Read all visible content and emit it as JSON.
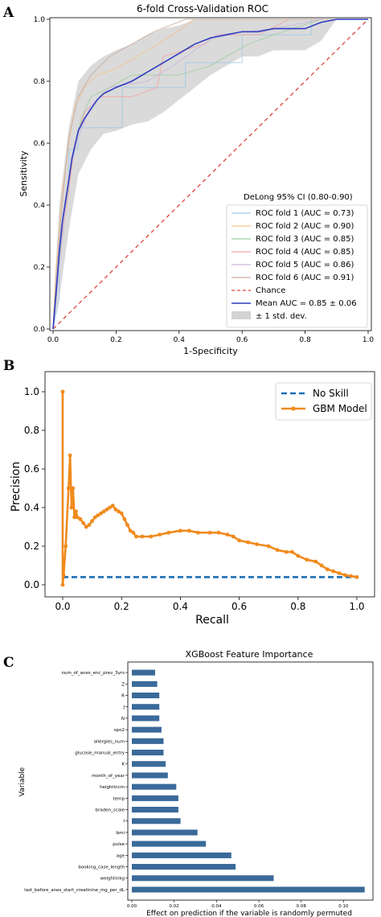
{
  "panel_letters": {
    "a": "A",
    "b": "B",
    "c": "C"
  },
  "chart_data": [
    {
      "type": "line",
      "title": "6-fold Cross-Validation ROC",
      "xlabel": "1-Specificity",
      "ylabel": "Sensitivity",
      "xlim": [
        0,
        1
      ],
      "ylim": [
        0,
        1
      ],
      "xticks": [
        "0.0",
        "0.2",
        "0.4",
        "0.6",
        "0.8",
        "1.0"
      ],
      "yticks": [
        "0.0",
        "0.2",
        "0.4",
        "0.6",
        "0.8",
        "1.0"
      ],
      "legend_title": "DeLong 95% CI  (0.80-0.90)",
      "legend_position": "lower-right",
      "series": [
        {
          "name": "ROC fold 1 (AUC = 0.73)",
          "color": "#9ecae9",
          "x": [
            0,
            0.02,
            0.02,
            0.05,
            0.05,
            0.08,
            0.08,
            0.22,
            0.22,
            0.42,
            0.42,
            0.6,
            0.6,
            0.82,
            0.82,
            1.0
          ],
          "y": [
            0,
            0.1,
            0.3,
            0.45,
            0.58,
            0.58,
            0.65,
            0.65,
            0.78,
            0.78,
            0.86,
            0.86,
            0.95,
            0.95,
            1.0,
            1.0
          ]
        },
        {
          "name": "ROC fold 2 (AUC = 0.90)",
          "color": "#f5c28a",
          "x": [
            0,
            0.01,
            0.03,
            0.05,
            0.07,
            0.1,
            0.14,
            0.2,
            0.3,
            0.38,
            0.45,
            0.55,
            0.75,
            1.0
          ],
          "y": [
            0,
            0.2,
            0.45,
            0.6,
            0.72,
            0.78,
            0.82,
            0.84,
            0.9,
            0.95,
            1.0,
            1.0,
            1.0,
            1.0
          ]
        },
        {
          "name": "ROC fold 3 (AUC = 0.85)",
          "color": "#9fcf9f",
          "x": [
            0,
            0.02,
            0.04,
            0.06,
            0.09,
            0.12,
            0.18,
            0.25,
            0.4,
            0.5,
            0.55,
            0.62,
            0.7,
            0.85,
            1.0
          ],
          "y": [
            0,
            0.22,
            0.4,
            0.55,
            0.68,
            0.75,
            0.78,
            0.82,
            0.82,
            0.85,
            0.88,
            0.92,
            0.95,
            1.0,
            1.0
          ]
        },
        {
          "name": "ROC fold 4 (AUC = 0.85)",
          "color": "#f2a3a3",
          "x": [
            0,
            0.02,
            0.05,
            0.07,
            0.1,
            0.15,
            0.25,
            0.33,
            0.35,
            0.48,
            0.52,
            0.65,
            0.75,
            1.0
          ],
          "y": [
            0,
            0.25,
            0.45,
            0.6,
            0.7,
            0.75,
            0.75,
            0.78,
            0.88,
            0.92,
            0.95,
            0.95,
            1.0,
            1.0
          ]
        },
        {
          "name": "ROC fold 5 (AUC = 0.86)",
          "color": "#cbb5dd",
          "x": [
            0,
            0.03,
            0.05,
            0.08,
            0.12,
            0.18,
            0.3,
            0.38,
            0.45,
            0.52,
            0.7,
            0.85,
            1.0
          ],
          "y": [
            0,
            0.3,
            0.5,
            0.62,
            0.72,
            0.78,
            0.8,
            0.85,
            0.9,
            0.95,
            0.97,
            1.0,
            1.0
          ]
        },
        {
          "name": "ROC fold 6 (AUC = 0.91)",
          "color": "#c9a99a",
          "x": [
            0,
            0.01,
            0.03,
            0.05,
            0.08,
            0.12,
            0.18,
            0.25,
            0.32,
            0.42,
            0.6,
            1.0
          ],
          "y": [
            0,
            0.18,
            0.42,
            0.62,
            0.75,
            0.82,
            0.88,
            0.92,
            0.96,
            1.0,
            1.0,
            1.0
          ]
        },
        {
          "name": "Chance",
          "color": "#e0443c",
          "style": "dashed",
          "x": [
            0,
            1
          ],
          "y": [
            0,
            1
          ]
        },
        {
          "name": "Mean AUC = 0.85 ± 0.06",
          "color": "#2f3bbf",
          "x": [
            0,
            0.01,
            0.02,
            0.03,
            0.05,
            0.06,
            0.08,
            0.1,
            0.12,
            0.14,
            0.16,
            0.18,
            0.2,
            0.25,
            0.3,
            0.35,
            0.4,
            0.45,
            0.5,
            0.55,
            0.6,
            0.65,
            0.7,
            0.75,
            0.8,
            0.85,
            0.9,
            0.95,
            1.0
          ],
          "y": [
            0,
            0.12,
            0.25,
            0.35,
            0.48,
            0.55,
            0.64,
            0.68,
            0.71,
            0.74,
            0.76,
            0.77,
            0.78,
            0.8,
            0.83,
            0.86,
            0.89,
            0.92,
            0.94,
            0.95,
            0.96,
            0.96,
            0.97,
            0.97,
            0.97,
            0.99,
            1.0,
            1.0,
            1.0
          ]
        }
      ],
      "band": {
        "name": "± 1 std. dev.",
        "color": "#d3d3d3",
        "x": [
          0,
          0.02,
          0.05,
          0.08,
          0.12,
          0.16,
          0.2,
          0.25,
          0.3,
          0.35,
          0.4,
          0.45,
          0.5,
          0.55,
          0.6,
          0.65,
          0.7,
          0.75,
          0.8,
          0.85,
          0.9,
          1.0
        ],
        "upper": [
          0.05,
          0.4,
          0.65,
          0.8,
          0.85,
          0.88,
          0.9,
          0.92,
          0.95,
          0.97,
          0.98,
          1.0,
          1.0,
          1.0,
          1.0,
          1.0,
          1.0,
          1.0,
          1.0,
          1.0,
          1.0,
          1.0
        ],
        "lower": [
          0,
          0.1,
          0.32,
          0.5,
          0.58,
          0.63,
          0.64,
          0.66,
          0.67,
          0.7,
          0.74,
          0.78,
          0.82,
          0.85,
          0.88,
          0.88,
          0.9,
          0.9,
          0.9,
          0.93,
          1.0,
          1.0
        ]
      }
    },
    {
      "type": "line",
      "title": "",
      "xlabel": "Recall",
      "ylabel": "Precision",
      "xlim": [
        0,
        1
      ],
      "ylim": [
        0,
        1
      ],
      "xticks": [
        "0.0",
        "0.2",
        "0.4",
        "0.6",
        "0.8",
        "1.0"
      ],
      "yticks": [
        "0.0",
        "0.2",
        "0.4",
        "0.6",
        "0.8",
        "1.0"
      ],
      "legend_position": "top-right",
      "series": [
        {
          "name": "No Skill",
          "color": "#1f6fb4",
          "style": "dashed",
          "x": [
            0,
            1
          ],
          "y": [
            0.04,
            0.04
          ]
        },
        {
          "name": "GBM Model",
          "color": "#f08a1c",
          "marker": "dot",
          "x": [
            0,
            0,
            0.003,
            0.01,
            0.02,
            0.025,
            0.03,
            0.035,
            0.04,
            0.045,
            0.05,
            0.06,
            0.07,
            0.08,
            0.09,
            0.1,
            0.11,
            0.12,
            0.13,
            0.14,
            0.15,
            0.16,
            0.17,
            0.18,
            0.19,
            0.2,
            0.21,
            0.22,
            0.23,
            0.24,
            0.25,
            0.27,
            0.3,
            0.33,
            0.36,
            0.4,
            0.43,
            0.46,
            0.5,
            0.53,
            0.56,
            0.58,
            0.6,
            0.63,
            0.66,
            0.7,
            0.73,
            0.76,
            0.78,
            0.8,
            0.83,
            0.86,
            0.88,
            0.9,
            0.92,
            0.94,
            0.96,
            0.98,
            1.0
          ],
          "y": [
            1.0,
            0,
            0.05,
            0.2,
            0.5,
            0.67,
            0.4,
            0.5,
            0.35,
            0.38,
            0.35,
            0.34,
            0.32,
            0.3,
            0.31,
            0.33,
            0.35,
            0.36,
            0.37,
            0.38,
            0.39,
            0.4,
            0.41,
            0.39,
            0.38,
            0.37,
            0.34,
            0.31,
            0.28,
            0.27,
            0.25,
            0.25,
            0.25,
            0.26,
            0.27,
            0.28,
            0.28,
            0.27,
            0.27,
            0.27,
            0.26,
            0.25,
            0.23,
            0.22,
            0.21,
            0.2,
            0.18,
            0.17,
            0.17,
            0.15,
            0.13,
            0.12,
            0.1,
            0.08,
            0.07,
            0.06,
            0.05,
            0.045,
            0.04
          ]
        }
      ]
    },
    {
      "type": "bar",
      "orientation": "horizontal",
      "title": "XGBoost Feature Importance",
      "xlabel": "Effect on prediction if the variable is randomly permuted",
      "ylabel": "Variable",
      "xlim": [
        0,
        0.112
      ],
      "xticks": [
        "0.00",
        "0.02",
        "0.04",
        "0.06",
        "0.08",
        "0.10"
      ],
      "bar_color": "#3a6a9a",
      "categories": [
        "last_before_anes_start_creatinine_mg_per_dL",
        "weightinkg",
        "booking_case_length",
        "age",
        "pulse",
        "bmi",
        "I",
        "braden_scale",
        "temp",
        "heightincm",
        "month_of_year",
        "K",
        "glucose_manual_entry",
        "allergies_num",
        "spo2",
        "N",
        "J",
        "R",
        "Z",
        "num_of_anes_enc_prev_3yrs"
      ],
      "values": [
        0.11,
        0.067,
        0.049,
        0.047,
        0.035,
        0.031,
        0.023,
        0.022,
        0.022,
        0.021,
        0.017,
        0.016,
        0.015,
        0.015,
        0.014,
        0.013,
        0.013,
        0.013,
        0.012,
        0.011
      ]
    }
  ]
}
